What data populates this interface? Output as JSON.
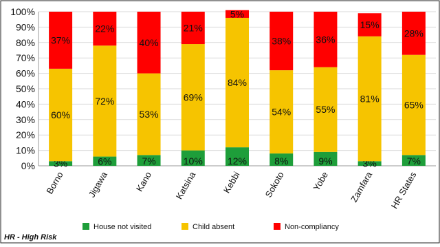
{
  "chart_data": {
    "type": "bar",
    "stacked": true,
    "percent_stacked": true,
    "categories": [
      "Borno",
      "Jigawa",
      "Kano",
      "Katsina",
      "Kebbi",
      "Sokoto",
      "Yobe",
      "Zamfara",
      "HR States"
    ],
    "series": [
      {
        "name": "House not visited",
        "color": "#1e9e3a",
        "values": [
          3,
          6,
          7,
          10,
          12,
          8,
          9,
          3,
          7
        ],
        "labels": [
          "3%",
          "6%",
          "7%",
          "10%",
          "12%",
          "8%",
          "9%",
          "3%",
          "7%"
        ]
      },
      {
        "name": "Child absent",
        "color": "#f6c400",
        "values": [
          60,
          72,
          53,
          69,
          84,
          54,
          55,
          81,
          65
        ],
        "labels": [
          "60%",
          "72%",
          "53%",
          "69%",
          "84%",
          "54%",
          "55%",
          "81%",
          "65%"
        ]
      },
      {
        "name": "Non-compliancy",
        "color": "#ff0000",
        "values": [
          37,
          22,
          40,
          21,
          5,
          38,
          36,
          15,
          28
        ],
        "labels": [
          "37%",
          "22%",
          "40%",
          "21%",
          "5%",
          "38%",
          "36%",
          "15%",
          "28%"
        ]
      }
    ],
    "yticks": [
      "0%",
      "10%",
      "20%",
      "30%",
      "40%",
      "50%",
      "60%",
      "70%",
      "80%",
      "90%",
      "100%"
    ],
    "ylim": [
      0,
      100
    ],
    "grid": true,
    "legend_position": "bottom"
  },
  "footnote": "HR - High Risk"
}
